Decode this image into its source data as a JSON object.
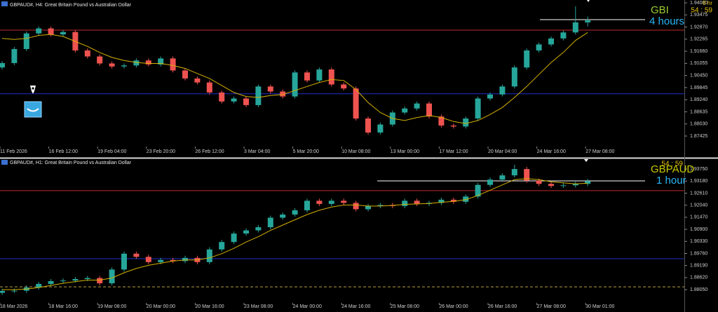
{
  "chart_data": [
    {
      "type": "candlestick",
      "title": "GBPAUD#, H4:  Great Britain Pound vs Australian Dollar",
      "timer_hours": "0 hr",
      "timer": "54 : 59",
      "symbol_label": "GBI",
      "period_label": "4 hours",
      "categories": [
        "11 Feb 2026",
        null,
        null,
        null,
        "16 Feb 12:00",
        null,
        null,
        null,
        "19 Feb 04:00",
        null,
        null,
        null,
        "23 Feb 20:00",
        null,
        null,
        null,
        "26 Feb 12:00",
        null,
        null,
        null,
        "3 Mar 04:00",
        null,
        null,
        null,
        "5 Mar 20:00",
        null,
        null,
        null,
        "10 Mar 08:00",
        null,
        null,
        null,
        "13 Mar 00:00",
        null,
        null,
        null,
        "17 Mar 12:00",
        null,
        null,
        null,
        "20 Mar 04:00",
        null,
        null,
        null,
        "24 Mar 16:00",
        null,
        null,
        null,
        "27 Mar 08:00"
      ],
      "open": [
        1.9085,
        1.9107,
        1.9177,
        1.9255,
        1.928,
        1.925,
        1.9262,
        1.917,
        1.914,
        1.9105,
        1.909,
        1.9095,
        1.912,
        1.91,
        1.913,
        1.907,
        1.903,
        1.901,
        1.896,
        1.8915,
        1.893,
        1.8897,
        1.899,
        1.8965,
        1.894,
        1.906,
        1.902,
        1.9075,
        1.9,
        1.898,
        1.883,
        1.876,
        1.88,
        1.886,
        1.888,
        1.8905,
        1.884,
        1.8795,
        1.879,
        1.883,
        1.893,
        1.895,
        1.899,
        1.9085,
        1.917,
        1.92,
        1.923,
        1.926,
        1.931
      ],
      "high": [
        1.9117,
        1.9187,
        1.9265,
        1.929,
        1.929,
        1.9272,
        1.9272,
        1.918,
        1.915,
        1.9115,
        1.9105,
        1.913,
        1.913,
        1.914,
        1.914,
        1.908,
        1.904,
        1.902,
        1.897,
        1.894,
        1.894,
        1.9,
        1.9,
        1.8975,
        1.907,
        1.907,
        1.9085,
        1.9085,
        1.901,
        1.899,
        1.884,
        1.881,
        1.887,
        1.889,
        1.8915,
        1.8915,
        1.885,
        1.8805,
        1.884,
        1.894,
        1.896,
        1.9,
        1.9095,
        1.918,
        1.921,
        1.924,
        1.927,
        1.939,
        1.934
      ],
      "low": [
        1.9075,
        1.9097,
        1.9167,
        1.9245,
        1.924,
        1.924,
        1.916,
        1.913,
        1.9095,
        1.908,
        1.908,
        1.9085,
        1.909,
        1.909,
        1.906,
        1.902,
        1.9,
        1.895,
        1.8905,
        1.8905,
        1.8887,
        1.8887,
        1.8955,
        1.893,
        1.893,
        1.901,
        1.901,
        1.899,
        1.897,
        1.882,
        1.875,
        1.875,
        1.879,
        1.885,
        1.887,
        1.883,
        1.8785,
        1.878,
        1.878,
        1.882,
        1.892,
        1.894,
        1.898,
        1.9075,
        1.916,
        1.919,
        1.922,
        1.925,
        1.929
      ],
      "close": [
        1.9107,
        1.9177,
        1.9255,
        1.928,
        1.925,
        1.9262,
        1.917,
        1.914,
        1.9105,
        1.909,
        1.9095,
        1.912,
        1.91,
        1.913,
        1.907,
        1.903,
        1.901,
        1.896,
        1.8915,
        1.893,
        1.8897,
        1.899,
        1.8965,
        1.894,
        1.906,
        1.902,
        1.9075,
        1.9,
        1.898,
        1.883,
        1.876,
        1.88,
        1.886,
        1.888,
        1.8905,
        1.884,
        1.8795,
        1.879,
        1.883,
        1.893,
        1.895,
        1.899,
        1.9085,
        1.917,
        1.92,
        1.923,
        1.926,
        1.931,
        1.932
      ],
      "ma": [
        1.923,
        1.9225,
        1.923,
        1.9245,
        1.925,
        1.924,
        1.9215,
        1.919,
        1.916,
        1.9135,
        1.912,
        1.911,
        1.9105,
        1.9105,
        1.9095,
        1.908,
        1.9055,
        1.903,
        1.8995,
        1.896,
        1.894,
        1.8935,
        1.8945,
        1.895,
        1.897,
        1.899,
        1.901,
        1.9025,
        1.902,
        1.8975,
        1.891,
        1.886,
        1.883,
        1.882,
        1.8835,
        1.8845,
        1.8835,
        1.8815,
        1.8805,
        1.882,
        1.885,
        1.8885,
        1.8935,
        1.899,
        1.905,
        1.911,
        1.916,
        1.922,
        1.926
      ],
      "up_color": "#26a69a",
      "down_color": "#ef5350",
      "ma_color": "#d4b000",
      "ylim": [
        1.8697,
        1.9422
      ],
      "yticks": [
        {
          "value": 1.9408,
          "label": "1.94080"
        },
        {
          "value": 1.93475,
          "label": "1.93475"
        },
        {
          "value": 1.9287,
          "label": "1.92870"
        },
        {
          "value": 1.92265,
          "label": "1.92265"
        },
        {
          "value": 1.9166,
          "label": "1.91660"
        },
        {
          "value": 1.91055,
          "label": "1.91055"
        },
        {
          "value": 1.9045,
          "label": "1.90450"
        },
        {
          "value": 1.89845,
          "label": "1.89845"
        },
        {
          "value": 1.8924,
          "label": "1.89240"
        },
        {
          "value": 1.88635,
          "label": "1.88635"
        },
        {
          "value": 1.8803,
          "label": "1.88030"
        },
        {
          "value": 1.87425,
          "label": "1.87425"
        }
      ],
      "levels": [
        {
          "value": 1.92716,
          "color": "#c0282d"
        },
        {
          "value": 1.89534,
          "color": "#1f2fc8"
        },
        {
          "value": 1.93241,
          "color": "#ffffff"
        }
      ]
    },
    {
      "type": "candlestick",
      "title": "GBPAUD#, H1:  Great Britain Pound vs Australian Dollar",
      "timer": "54 : 59",
      "symbol_label": "GBPAUD",
      "period_label": "1 hour",
      "categories": [
        "18 Mar 2026",
        null,
        null,
        null,
        "18 Mar 16:00",
        null,
        null,
        null,
        "19 Mar 08:00",
        null,
        null,
        null,
        "20 Mar 00:00",
        null,
        null,
        null,
        "20 Mar 16:00",
        null,
        null,
        null,
        "23 Mar 08:00",
        null,
        null,
        null,
        "24 Mar 00:00",
        null,
        null,
        null,
        "24 Mar 16:00",
        null,
        null,
        null,
        "25 Mar 08:00",
        null,
        null,
        null,
        "26 Mar 00:00",
        null,
        null,
        null,
        "26 Mar 16:00",
        null,
        null,
        null,
        "27 Mar 08:00",
        null,
        null,
        null,
        "30 Mar 01:00"
      ],
      "open": [
        1.879,
        1.8799,
        1.88,
        1.8815,
        1.8832,
        1.8845,
        1.8848,
        1.8855,
        1.886,
        1.8835,
        1.89,
        1.8975,
        1.896,
        1.8935,
        1.8945,
        1.894,
        1.8955,
        1.8935,
        1.8995,
        1.903,
        1.907,
        1.9085,
        1.91,
        1.9145,
        1.916,
        1.918,
        1.9225,
        1.921,
        1.9225,
        1.9215,
        1.9185,
        1.92,
        1.9205,
        1.92,
        1.9225,
        1.921,
        1.9215,
        1.923,
        1.922,
        1.9245,
        1.93,
        1.9325,
        1.9345,
        1.9375,
        1.932,
        1.9305,
        1.9295,
        1.9298,
        1.9305
      ],
      "high": [
        1.8809,
        1.881,
        1.8825,
        1.8842,
        1.8855,
        1.8858,
        1.8865,
        1.887,
        1.887,
        1.891,
        1.8985,
        1.8985,
        1.897,
        1.8955,
        1.8955,
        1.8965,
        1.8965,
        1.9005,
        1.904,
        1.908,
        1.9095,
        1.911,
        1.9155,
        1.917,
        1.919,
        1.9235,
        1.9235,
        1.9235,
        1.9235,
        1.9225,
        1.921,
        1.9215,
        1.9215,
        1.9235,
        1.9235,
        1.9225,
        1.924,
        1.924,
        1.9255,
        1.931,
        1.9335,
        1.9355,
        1.9395,
        1.9385,
        1.933,
        1.9315,
        1.9308,
        1.9315,
        1.9328
      ],
      "low": [
        1.878,
        1.8789,
        1.879,
        1.8805,
        1.8822,
        1.8835,
        1.8838,
        1.8845,
        1.8825,
        1.8825,
        1.889,
        1.895,
        1.8925,
        1.8925,
        1.893,
        1.893,
        1.8925,
        1.8925,
        1.8985,
        1.902,
        1.906,
        1.9075,
        1.909,
        1.9135,
        1.915,
        1.917,
        1.92,
        1.92,
        1.9205,
        1.9175,
        1.9175,
        1.919,
        1.919,
        1.919,
        1.92,
        1.92,
        1.9205,
        1.921,
        1.921,
        1.9235,
        1.929,
        1.9315,
        1.9335,
        1.931,
        1.9295,
        1.9285,
        1.9285,
        1.9288,
        1.9295
      ],
      "close": [
        1.8799,
        1.88,
        1.8815,
        1.8832,
        1.8845,
        1.8848,
        1.8855,
        1.886,
        1.8835,
        1.89,
        1.8975,
        1.896,
        1.8935,
        1.8945,
        1.894,
        1.8955,
        1.8935,
        1.8995,
        1.903,
        1.907,
        1.9085,
        1.91,
        1.9145,
        1.916,
        1.918,
        1.9225,
        1.921,
        1.9225,
        1.9215,
        1.9185,
        1.92,
        1.9205,
        1.92,
        1.9225,
        1.921,
        1.9215,
        1.923,
        1.922,
        1.9245,
        1.93,
        1.9325,
        1.9345,
        1.9375,
        1.932,
        1.9305,
        1.9295,
        1.9298,
        1.9305,
        1.9318
      ],
      "ma": [
        1.8805,
        1.8805,
        1.8808,
        1.8815,
        1.8825,
        1.8835,
        1.8843,
        1.885,
        1.885,
        1.886,
        1.8885,
        1.8905,
        1.892,
        1.893,
        1.894,
        1.8945,
        1.8945,
        1.8955,
        1.8975,
        1.9,
        1.903,
        1.9055,
        1.9085,
        1.911,
        1.9135,
        1.916,
        1.918,
        1.9195,
        1.9205,
        1.9205,
        1.92,
        1.92,
        1.9203,
        1.9208,
        1.921,
        1.9212,
        1.9218,
        1.9222,
        1.923,
        1.925,
        1.9275,
        1.93,
        1.9325,
        1.933,
        1.9325,
        1.9315,
        1.931,
        1.9305,
        1.9308
      ],
      "up_color": "#26a69a",
      "down_color": "#ef5350",
      "ma_color": "#d4b000",
      "ylim": [
        1.8749,
        1.9415
      ],
      "yticks": [
        {
          "value": 1.9375,
          "label": "1.93750"
        },
        {
          "value": 1.9318,
          "label": "1.93180"
        },
        {
          "value": 1.9261,
          "label": "1.92610"
        },
        {
          "value": 1.9204,
          "label": "1.92040"
        },
        {
          "value": 1.9147,
          "label": "1.91470"
        },
        {
          "value": 1.909,
          "label": "1.90900"
        },
        {
          "value": 1.9033,
          "label": "1.90330"
        },
        {
          "value": 1.8976,
          "label": "1.89760"
        },
        {
          "value": 1.8919,
          "label": "1.89190"
        },
        {
          "value": 1.8862,
          "label": "1.88620"
        },
        {
          "value": 1.8805,
          "label": "1.88050"
        }
      ],
      "levels": [
        {
          "value": 1.9273,
          "color": "#c0282d"
        },
        {
          "value": 1.8951,
          "color": "#1f2fc8"
        },
        {
          "value": 1.8818,
          "color": "#b8a040",
          "dashed": true
        },
        {
          "value": 1.9319,
          "color": "#ffffff"
        }
      ]
    }
  ]
}
